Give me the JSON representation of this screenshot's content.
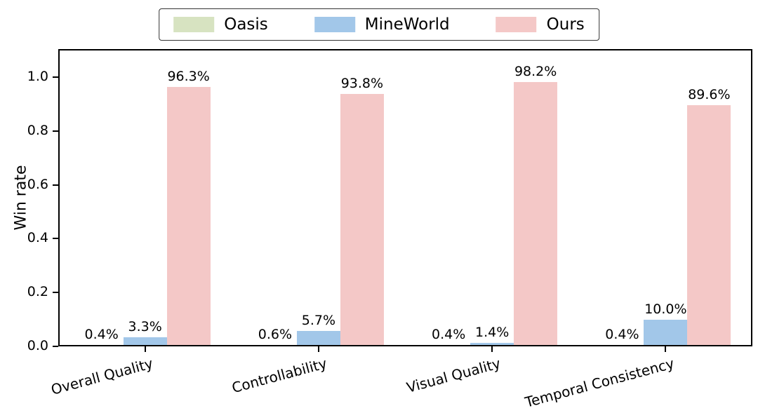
{
  "chart_data": {
    "type": "bar",
    "title": "",
    "categories": [
      "Overall Quality",
      "Controllability",
      "Visual Quality",
      "Temporal Consistency"
    ],
    "series": [
      {
        "name": "Oasis",
        "color": "#d7e3c1",
        "values": [
          0.004,
          0.006,
          0.004,
          0.004
        ],
        "labels": [
          "0.4%",
          "0.6%",
          "0.4%",
          "0.4%"
        ]
      },
      {
        "name": "MineWorld",
        "color": "#a2c7e9",
        "values": [
          0.033,
          0.057,
          0.014,
          0.1
        ],
        "labels": [
          "3.3%",
          "5.7%",
          "1.4%",
          "10.0%"
        ]
      },
      {
        "name": "Ours",
        "color": "#f4c8c7",
        "values": [
          0.963,
          0.938,
          0.982,
          0.896
        ],
        "labels": [
          "96.3%",
          "93.8%",
          "98.2%",
          "89.6%"
        ]
      }
    ],
    "xlabel": "",
    "ylabel": "Win rate",
    "yticks": [
      "0.0",
      "0.2",
      "0.4",
      "0.6",
      "0.8",
      "1.0"
    ],
    "ylim": [
      0,
      1.1
    ],
    "grid": false,
    "legend_position": "top-center"
  }
}
